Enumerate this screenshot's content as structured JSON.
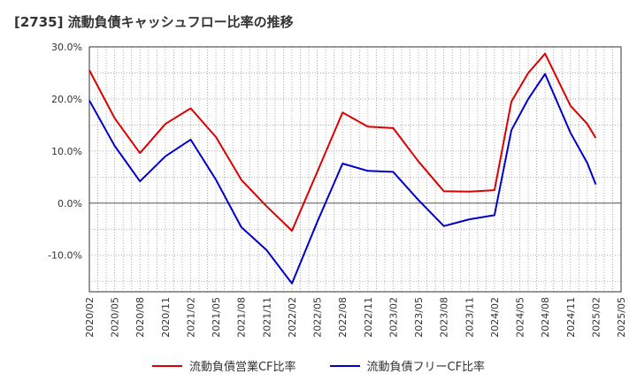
{
  "title": "[2735]  流動負債キャッシュフロー比率の推移",
  "colors": {
    "red": "#dd0000",
    "blue": "#0000cc",
    "grid": "#999999",
    "zero": "#555555"
  },
  "chart_data": {
    "type": "line",
    "title": "[2735]  流動負債キャッシュフロー比率の推移",
    "x_labels": [
      "2020/02",
      "2020/05",
      "2020/08",
      "2020/11",
      "2021/02",
      "2021/05",
      "2021/08",
      "2021/11",
      "2022/02",
      "2022/05",
      "2022/08",
      "2022/11",
      "2023/02",
      "2023/05",
      "2023/08",
      "2023/11",
      "2024/02",
      "2024/05",
      "2024/08",
      "2024/11",
      "2025/02",
      "2025/05"
    ],
    "y_ticks": [
      "30.0%",
      "20.0%",
      "10.0%",
      "0.0%",
      "-10.0%"
    ],
    "ylim": [
      -17,
      30
    ],
    "grid": true,
    "legend_position": "bottom",
    "series": [
      {
        "name": "流動負債営業CF比率",
        "color": "#dd0000",
        "points": [
          [
            "2020/02",
            25.5
          ],
          [
            "2020/05",
            16.3
          ],
          [
            "2020/08",
            9.6
          ],
          [
            "2020/11",
            15.2
          ],
          [
            "2021/02",
            18.2
          ],
          [
            "2021/05",
            12.7
          ],
          [
            "2021/08",
            4.5
          ],
          [
            "2021/11",
            -0.6
          ],
          [
            "2022/02",
            -5.3
          ],
          [
            "2022/05",
            6.0
          ],
          [
            "2022/08",
            17.4
          ],
          [
            "2022/11",
            14.7
          ],
          [
            "2023/02",
            14.4
          ],
          [
            "2023/05",
            8.0
          ],
          [
            "2023/08",
            2.3
          ],
          [
            "2023/11",
            2.2
          ],
          [
            "2024/02",
            2.5
          ],
          [
            "2024/04",
            19.5
          ],
          [
            "2024/06",
            25.0
          ],
          [
            "2024/08",
            28.7
          ],
          [
            "2024/11",
            18.7
          ],
          [
            "2025/01",
            15.2
          ],
          [
            "2025/02",
            12.5
          ]
        ]
      },
      {
        "name": "流動負債フリーCF比率",
        "color": "#0000cc",
        "points": [
          [
            "2020/02",
            19.7
          ],
          [
            "2020/05",
            11.0
          ],
          [
            "2020/08",
            4.2
          ],
          [
            "2020/11",
            9.0
          ],
          [
            "2021/02",
            12.2
          ],
          [
            "2021/05",
            4.5
          ],
          [
            "2021/08",
            -4.6
          ],
          [
            "2021/11",
            -9.0
          ],
          [
            "2022/02",
            -15.4
          ],
          [
            "2022/05",
            -3.6
          ],
          [
            "2022/08",
            7.6
          ],
          [
            "2022/11",
            6.2
          ],
          [
            "2023/02",
            6.0
          ],
          [
            "2023/05",
            0.6
          ],
          [
            "2023/08",
            -4.4
          ],
          [
            "2023/11",
            -3.1
          ],
          [
            "2024/02",
            -2.3
          ],
          [
            "2024/04",
            14.0
          ],
          [
            "2024/06",
            20.0
          ],
          [
            "2024/08",
            24.8
          ],
          [
            "2024/11",
            13.5
          ],
          [
            "2025/01",
            7.7
          ],
          [
            "2025/02",
            3.6
          ]
        ]
      }
    ]
  }
}
